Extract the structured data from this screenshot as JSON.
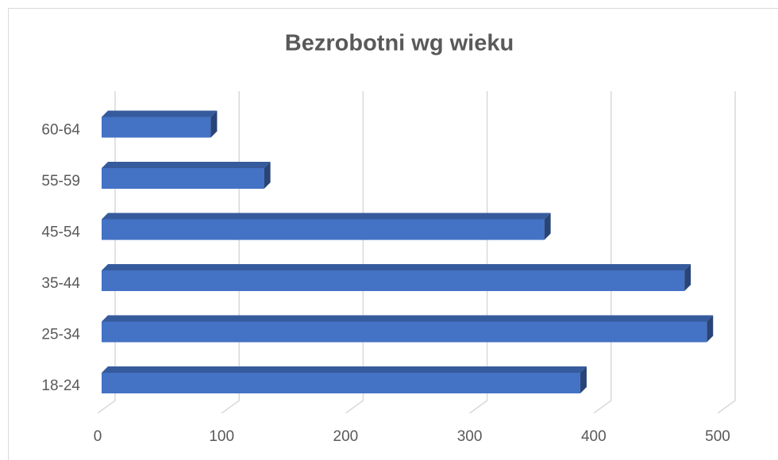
{
  "chart_data": {
    "type": "bar3d",
    "orientation": "horizontal",
    "title": "Bezrobotni wg wieku",
    "categories": [
      "18-24",
      "25-34",
      "35-44",
      "45-54",
      "55-59",
      "60-64"
    ],
    "values": [
      386,
      488,
      470,
      357,
      131,
      88
    ],
    "color": "#4472c4",
    "xlim": [
      0,
      500
    ],
    "xticks": [
      0,
      100,
      200,
      300,
      400,
      500
    ],
    "grid": true
  }
}
